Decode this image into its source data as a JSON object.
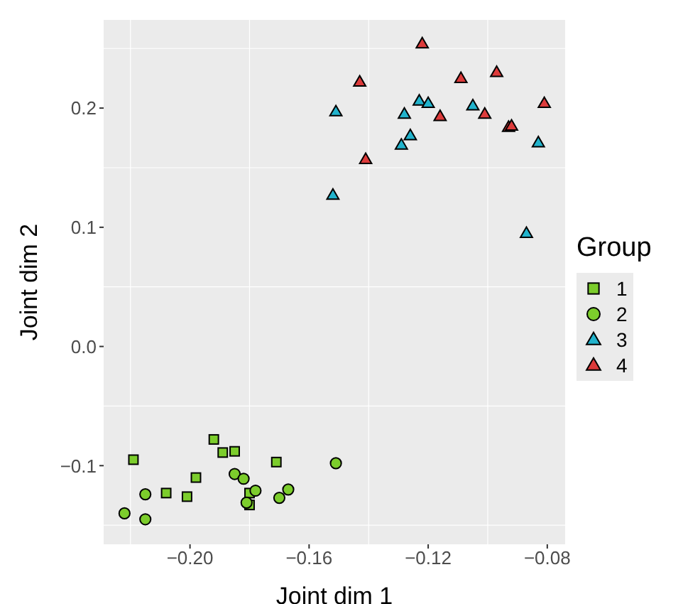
{
  "chart_data": {
    "type": "scatter",
    "xlabel": "Joint dim 1",
    "ylabel": "Joint dim 2",
    "legend_title": "Group",
    "legend": "right",
    "grid": true,
    "xlim": [
      -0.229,
      -0.074
    ],
    "xticks": [
      {
        "value": -0.2,
        "label": "−0.20"
      },
      {
        "value": -0.16,
        "label": "−0.16"
      },
      {
        "value": -0.12,
        "label": "−0.12"
      },
      {
        "value": -0.08,
        "label": "−0.08"
      }
    ],
    "ylim": [
      -0.166,
      0.274
    ],
    "yticks": [
      {
        "value": -0.1,
        "label": "−0.1"
      },
      {
        "value": 0,
        "label": "0.0"
      },
      {
        "value": 0.1,
        "label": "0.1"
      },
      {
        "value": 0.2,
        "label": "0.2"
      }
    ],
    "series": [
      {
        "name": "1",
        "color": "#7ccd2c",
        "marker": "square",
        "x": [
          -0.219,
          -0.192,
          -0.189,
          -0.185,
          -0.171,
          -0.198,
          -0.208,
          -0.201,
          -0.18,
          -0.18
        ],
        "values": [
          -0.095,
          -0.078,
          -0.089,
          -0.088,
          -0.097,
          -0.11,
          -0.123,
          -0.126,
          -0.123,
          -0.133
        ]
      },
      {
        "name": "2",
        "color": "#7ccd2c",
        "marker": "circle",
        "x": [
          -0.222,
          -0.215,
          -0.215,
          -0.185,
          -0.182,
          -0.178,
          -0.181,
          -0.17,
          -0.167,
          -0.151
        ],
        "values": [
          -0.14,
          -0.145,
          -0.124,
          -0.107,
          -0.111,
          -0.121,
          -0.131,
          -0.127,
          -0.12,
          -0.098
        ]
      },
      {
        "name": "3",
        "color": "#22b3cc",
        "marker": "triangle",
        "x": [
          -0.151,
          -0.152,
          -0.128,
          -0.129,
          -0.126,
          -0.123,
          -0.12,
          -0.105,
          -0.083,
          -0.087
        ],
        "values": [
          0.197,
          0.127,
          0.195,
          0.169,
          0.177,
          0.206,
          0.204,
          0.202,
          0.171,
          0.095
        ]
      },
      {
        "name": "4",
        "color": "#dd3b3b",
        "marker": "triangle",
        "x": [
          -0.143,
          -0.141,
          -0.122,
          -0.116,
          -0.109,
          -0.101,
          -0.097,
          -0.093,
          -0.092,
          -0.081
        ],
        "values": [
          0.222,
          0.157,
          0.254,
          0.193,
          0.225,
          0.195,
          0.23,
          0.184,
          0.185,
          0.204
        ]
      }
    ]
  }
}
